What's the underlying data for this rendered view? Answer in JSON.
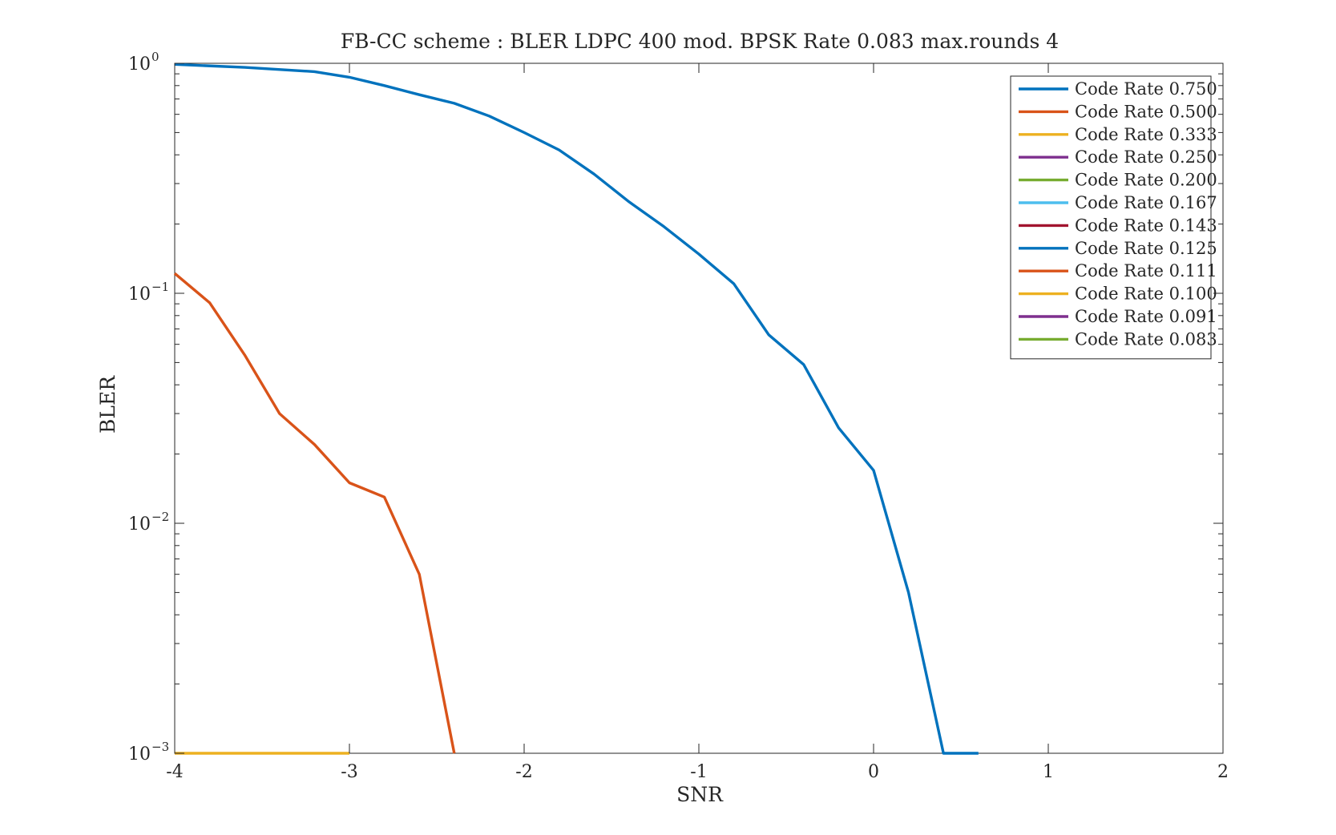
{
  "chart_data": {
    "type": "line",
    "title": "FB-CC scheme : BLER LDPC 400 mod. BPSK Rate 0.083 max.rounds 4",
    "xlabel": "SNR",
    "ylabel": "BLER",
    "xlim": [
      -4,
      2
    ],
    "ylim": [
      0.001,
      1
    ],
    "yscale": "log",
    "grid": false,
    "legend_position": "top-right",
    "x_ticks": [
      {
        "value": -4,
        "label": "-4"
      },
      {
        "value": -3,
        "label": "-3"
      },
      {
        "value": -2,
        "label": "-2"
      },
      {
        "value": -1,
        "label": "-1"
      },
      {
        "value": 0,
        "label": "0"
      },
      {
        "value": 1,
        "label": "1"
      },
      {
        "value": 2,
        "label": "2"
      }
    ],
    "y_ticks": [
      {
        "value": 1,
        "base": "10",
        "exp": "0"
      },
      {
        "value": 0.1,
        "base": "10",
        "exp": "−1"
      },
      {
        "value": 0.01,
        "base": "10",
        "exp": "−2"
      },
      {
        "value": 0.001,
        "base": "10",
        "exp": "−3"
      }
    ],
    "series": [
      {
        "name": "Code Rate 0.750",
        "color": "#0072BD",
        "points": [
          [
            -4,
            0.99
          ],
          [
            -3.6,
            0.96
          ],
          [
            -3.2,
            0.92
          ],
          [
            -3,
            0.87
          ],
          [
            -2.8,
            0.8
          ],
          [
            -2.6,
            0.73
          ],
          [
            -2.4,
            0.67
          ],
          [
            -2.2,
            0.59
          ],
          [
            -2,
            0.5
          ],
          [
            -1.8,
            0.42
          ],
          [
            -1.6,
            0.33
          ],
          [
            -1.4,
            0.25
          ],
          [
            -1.2,
            0.195
          ],
          [
            -1,
            0.148
          ],
          [
            -0.8,
            0.11
          ],
          [
            -0.6,
            0.066
          ],
          [
            -0.4,
            0.049
          ],
          [
            -0.2,
            0.026
          ],
          [
            0,
            0.017
          ],
          [
            0.2,
            0.005
          ],
          [
            0.4,
            0.001
          ],
          [
            0.6,
            0.001
          ]
        ]
      },
      {
        "name": "Code Rate 0.500",
        "color": "#D95319",
        "points": [
          [
            -4,
            0.122
          ],
          [
            -3.8,
            0.091
          ],
          [
            -3.6,
            0.054
          ],
          [
            -3.4,
            0.03
          ],
          [
            -3.2,
            0.022
          ],
          [
            -3,
            0.015
          ],
          [
            -2.8,
            0.013
          ],
          [
            -2.6,
            0.006
          ],
          [
            -2.4,
            0.001
          ]
        ]
      },
      {
        "name": "Code Rate 0.333",
        "color": "#EDB120",
        "points": [
          [
            -4,
            0.001
          ],
          [
            -3,
            0.001
          ]
        ]
      },
      {
        "name": "Code Rate 0.250",
        "color": "#7E2F8E",
        "points": []
      },
      {
        "name": "Code Rate 0.200",
        "color": "#77AC30",
        "points": []
      },
      {
        "name": "Code Rate 0.167",
        "color": "#4DBEEE",
        "points": []
      },
      {
        "name": "Code Rate 0.143",
        "color": "#A2142F",
        "points": []
      },
      {
        "name": "Code Rate 0.125",
        "color": "#0072BD",
        "points": []
      },
      {
        "name": "Code Rate 0.111",
        "color": "#D95319",
        "points": []
      },
      {
        "name": "Code Rate 0.100",
        "color": "#EDB120",
        "points": []
      },
      {
        "name": "Code Rate 0.091",
        "color": "#7E2F8E",
        "points": []
      },
      {
        "name": "Code Rate 0.083",
        "color": "#77AC30",
        "points": []
      }
    ]
  }
}
